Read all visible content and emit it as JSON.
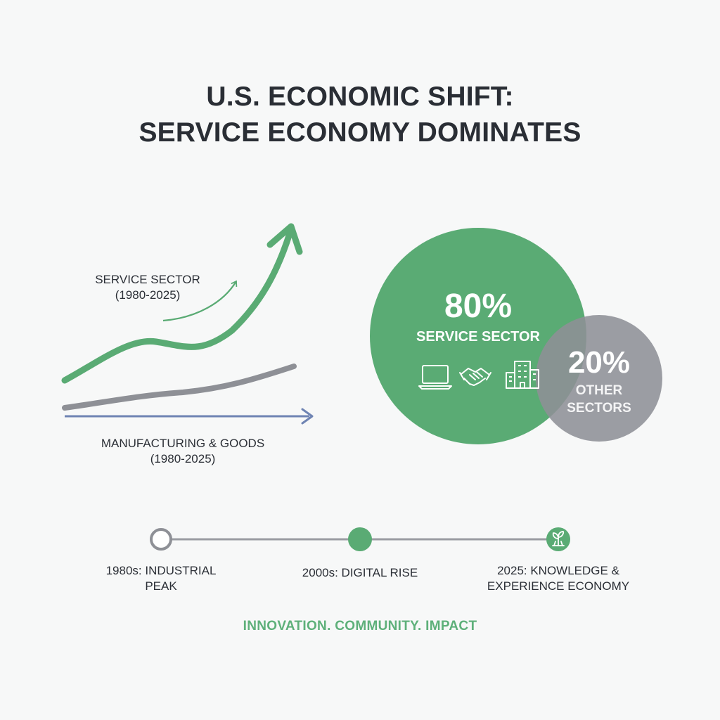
{
  "title": {
    "line1": "U.S. ECONOMIC SHIFT:",
    "line2": "SERVICE ECONOMY DOMINATES"
  },
  "trend": {
    "service_label": [
      "SERVICE SECTOR",
      "(1980-2025)"
    ],
    "manufacturing_label": [
      "MANUFACTURING & GOODS",
      "(1980-2025)"
    ]
  },
  "share": {
    "service": {
      "value": "80%",
      "label": "SERVICE SECTOR",
      "icons": [
        "laptop-icon",
        "handshake-icon",
        "office-building-icon"
      ]
    },
    "other": {
      "value": "20%",
      "label": [
        "OTHER",
        "SECTORS"
      ]
    }
  },
  "timeline": [
    {
      "label": [
        "1980s: INDUSTRIAL",
        "PEAK"
      ],
      "marker": "hollow"
    },
    {
      "label": [
        "2000s: DIGITAL RISE"
      ],
      "marker": "filled"
    },
    {
      "label": [
        "2025: KNOWLEDGE &",
        "EXPERIENCE ECONOMY"
      ],
      "marker": "icon",
      "icon": "growth-plant-icon"
    }
  ],
  "tagline": "INNOVATION. COMMUNITY. IMPACT",
  "colors": {
    "green": "#5aab74",
    "gray": "#8e9096",
    "blue": "#6f84b3",
    "text": "#2b2f36",
    "tagline": "#5eb07a"
  }
}
